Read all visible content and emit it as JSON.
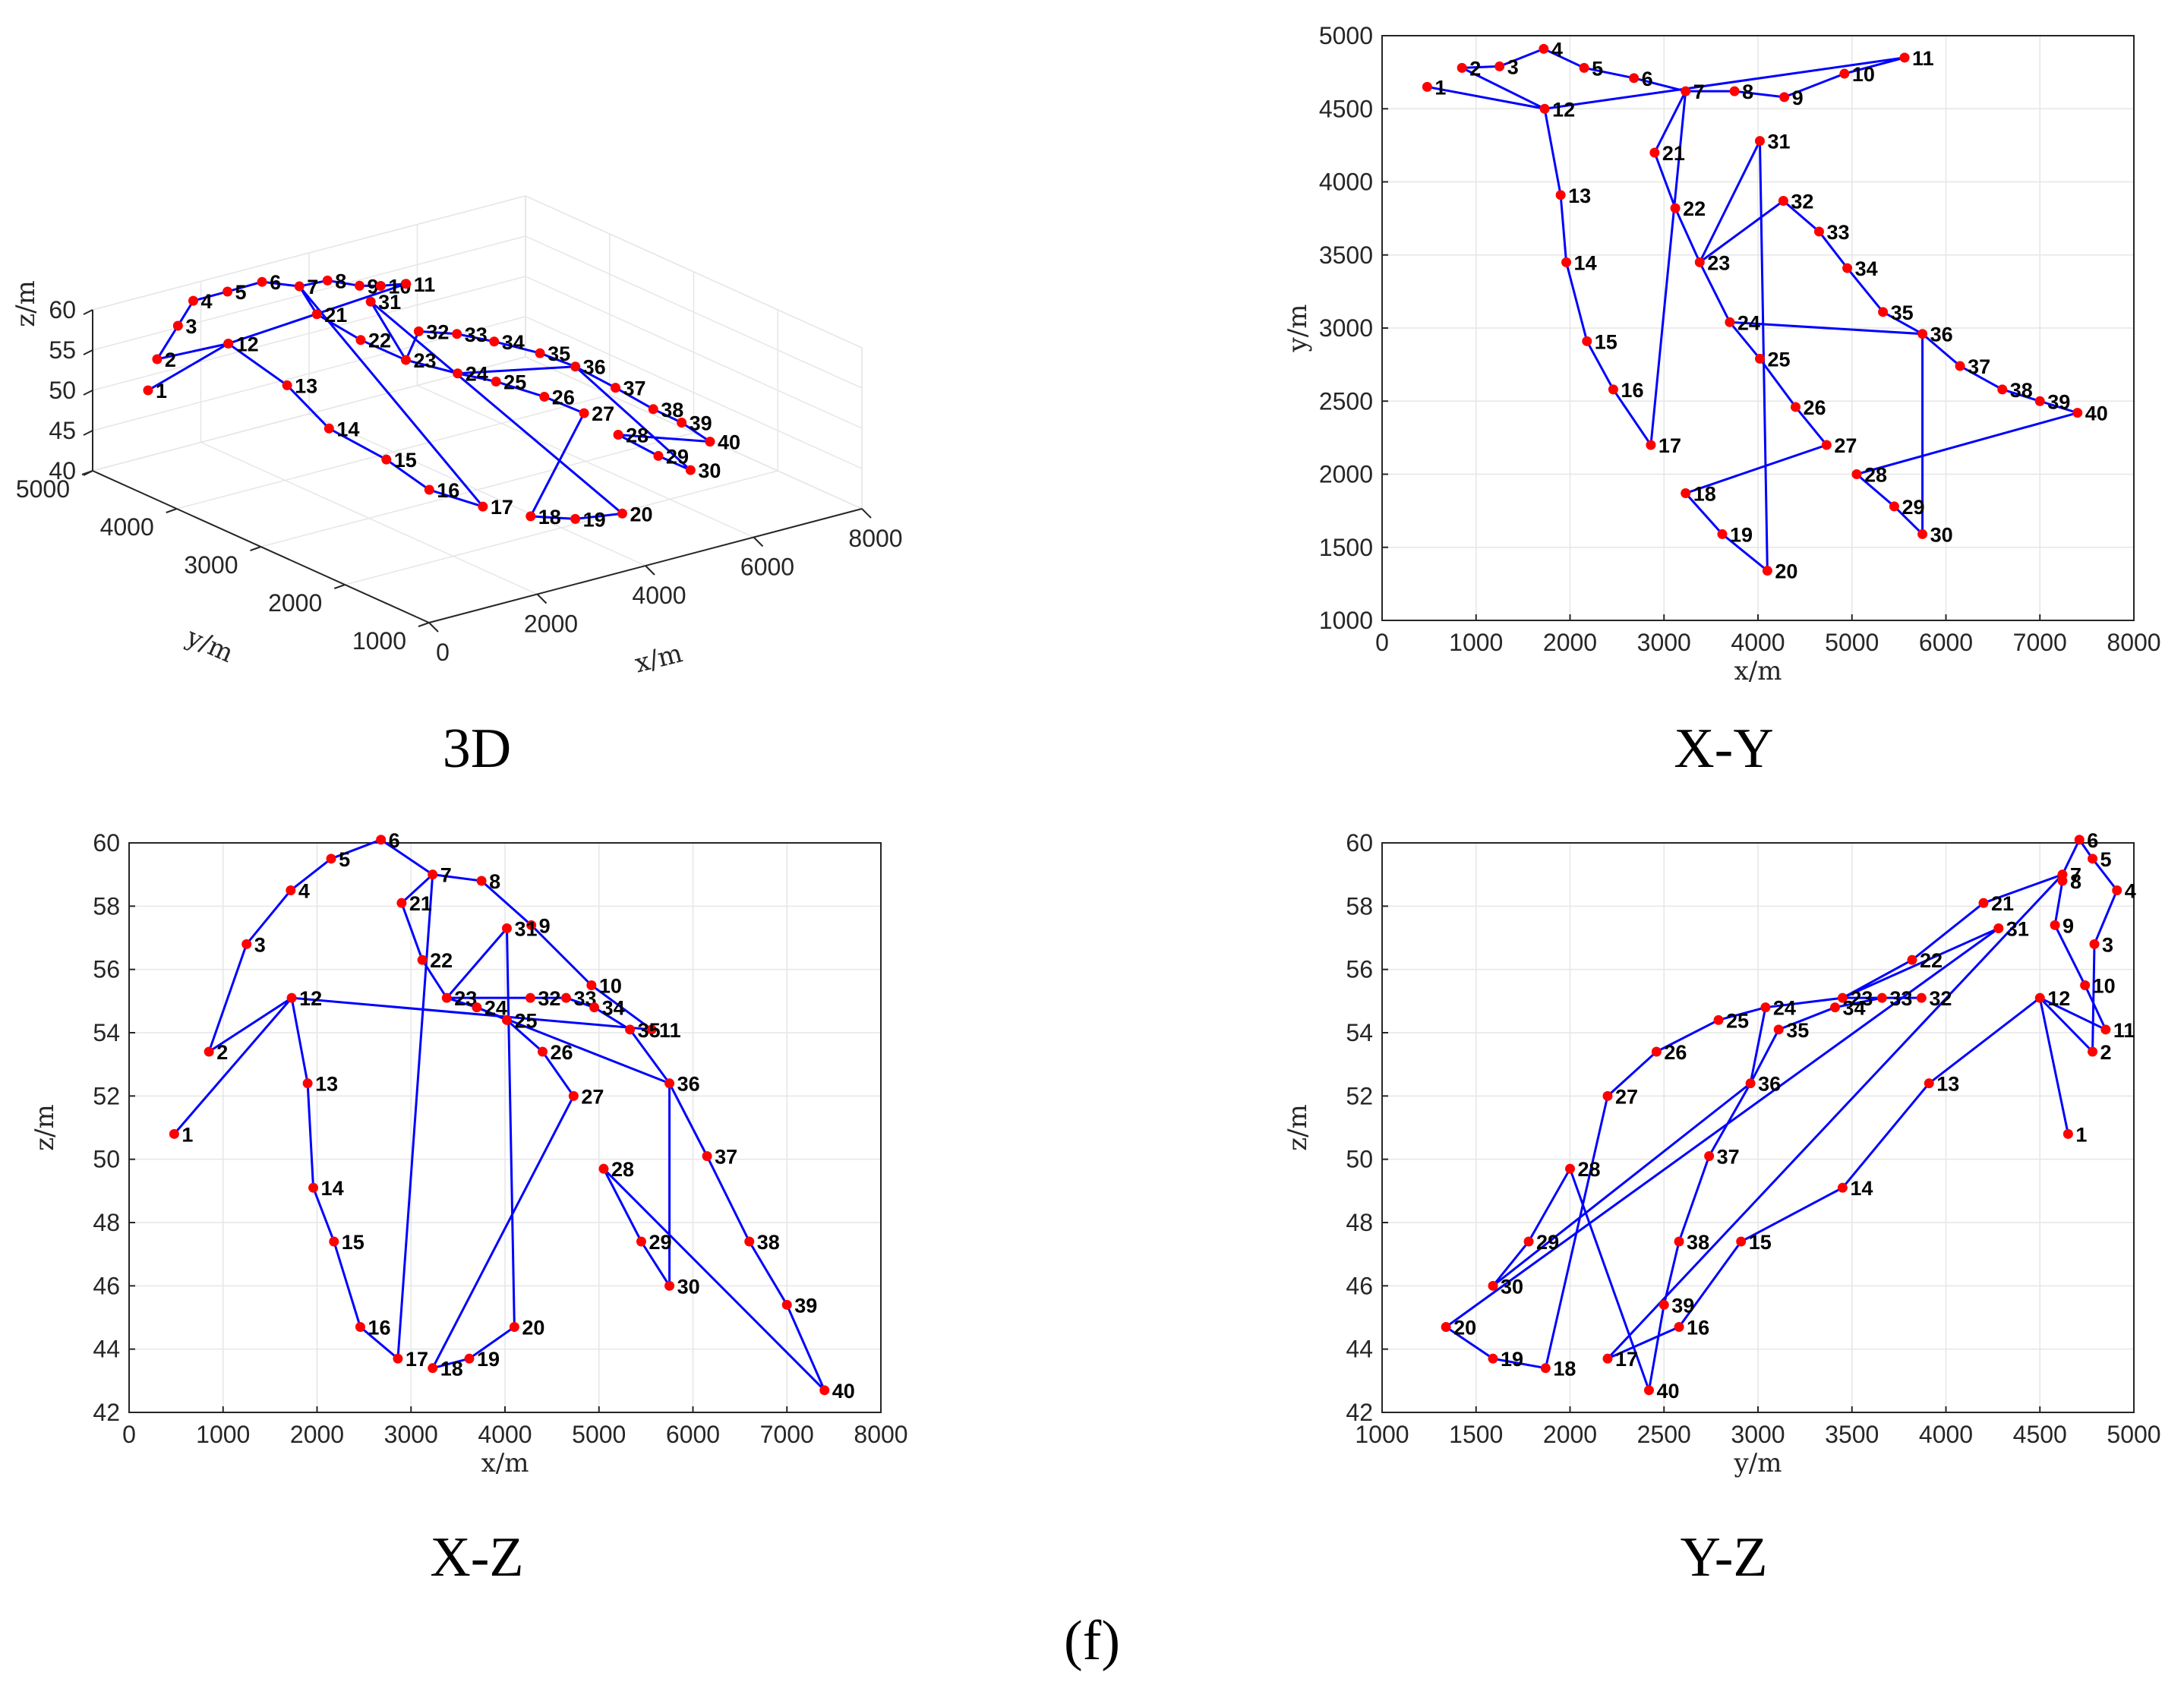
{
  "figure_label": "(f)",
  "point_ids": [
    "1",
    "2",
    "3",
    "4",
    "5",
    "6",
    "7",
    "8",
    "9",
    "10",
    "11",
    "12",
    "13",
    "14",
    "15",
    "16",
    "17",
    "18",
    "19",
    "20",
    "21",
    "22",
    "23",
    "24",
    "25",
    "26",
    "27",
    "28",
    "29",
    "30",
    "31",
    "32",
    "33",
    "34",
    "35",
    "36",
    "37",
    "38",
    "39",
    "40"
  ],
  "path_order": [
    "1",
    "12",
    "2",
    "3",
    "4",
    "5",
    "6",
    "7",
    "8",
    "9",
    "10",
    "11",
    "12",
    "13",
    "14",
    "15",
    "16",
    "17",
    "7",
    "21",
    "22",
    "23",
    "24",
    "25",
    "26",
    "27",
    "18",
    "19",
    "20",
    "31",
    "23",
    "32",
    "33",
    "34",
    "35",
    "36",
    "37",
    "38",
    "39",
    "40",
    "28",
    "29",
    "30",
    "36",
    "24"
  ],
  "chart_data": [
    {
      "id": "3d",
      "type": "scatter",
      "projection": "3d",
      "title": "3D",
      "xlabel": "x/m",
      "ylabel": "y/m",
      "zlabel": "z/m",
      "xlim": [
        0,
        8000
      ],
      "ylim": [
        1000,
        5000
      ],
      "zlim": [
        40,
        60
      ],
      "xticks": [
        "0",
        "2000",
        "4000",
        "6000",
        "8000"
      ],
      "yticks": [
        "1000",
        "2000",
        "3000",
        "4000",
        "5000"
      ],
      "zticks": [
        "40",
        "45",
        "50",
        "55",
        "60"
      ]
    },
    {
      "id": "xy",
      "type": "scatter",
      "title": "X-Y",
      "xlabel": "x/m",
      "ylabel": "y/m",
      "xlim": [
        0,
        8000
      ],
      "ylim": [
        1000,
        5000
      ],
      "xticks": [
        "0",
        "1000",
        "2000",
        "3000",
        "4000",
        "5000",
        "6000",
        "7000",
        "8000"
      ],
      "yticks": [
        "1000",
        "1500",
        "2000",
        "2500",
        "3000",
        "3500",
        "4000",
        "4500",
        "5000"
      ],
      "x": [
        480,
        850,
        1250,
        1720,
        2150,
        2680,
        3230,
        3750,
        4280,
        4920,
        5560,
        1730,
        1900,
        1960,
        2180,
        2460,
        2860,
        3230,
        3620,
        4100,
        2900,
        3120,
        3380,
        3700,
        4020,
        4400,
        4730,
        5050,
        5450,
        5750,
        4020,
        4270,
        4650,
        4950,
        5330,
        5750,
        6150,
        6600,
        7000,
        7400
      ],
      "y": [
        4650,
        4780,
        4790,
        4910,
        4780,
        4710,
        4620,
        4620,
        4580,
        4740,
        4850,
        4500,
        3910,
        3450,
        2910,
        2580,
        2200,
        1870,
        1590,
        1340,
        4200,
        3820,
        3450,
        3040,
        2790,
        2460,
        2200,
        2000,
        1780,
        1590,
        4280,
        3870,
        3660,
        3410,
        3110,
        2960,
        2740,
        2580,
        2500,
        2420
      ]
    },
    {
      "id": "xz",
      "type": "scatter",
      "title": "X-Z",
      "xlabel": "x/m",
      "ylabel": "z/m",
      "xlim": [
        0,
        8000
      ],
      "ylim": [
        42,
        60
      ],
      "xticks": [
        "0",
        "1000",
        "2000",
        "3000",
        "4000",
        "5000",
        "6000",
        "7000",
        "8000"
      ],
      "yticks": [
        "42",
        "44",
        "46",
        "48",
        "50",
        "52",
        "54",
        "56",
        "58",
        "60"
      ],
      "x": [
        480,
        850,
        1250,
        1720,
        2150,
        2680,
        3230,
        3750,
        4280,
        4920,
        5560,
        1730,
        1900,
        1960,
        2180,
        2460,
        2860,
        3230,
        3620,
        4100,
        2900,
        3120,
        3380,
        3700,
        4020,
        4400,
        4730,
        5050,
        5450,
        5750,
        4020,
        4270,
        4650,
        4950,
        5330,
        5750,
        6150,
        6600,
        7000,
        7400
      ],
      "z": [
        50.8,
        53.4,
        56.8,
        58.5,
        59.5,
        60.1,
        59.0,
        58.8,
        57.4,
        55.5,
        54.1,
        55.1,
        52.4,
        49.1,
        47.4,
        44.7,
        43.7,
        43.4,
        43.7,
        44.7,
        58.1,
        56.3,
        55.1,
        54.8,
        54.4,
        53.4,
        52.0,
        49.7,
        47.4,
        46.0,
        57.3,
        55.1,
        55.1,
        54.8,
        54.1,
        52.4,
        50.1,
        47.4,
        45.4,
        42.7
      ]
    },
    {
      "id": "yz",
      "type": "scatter",
      "title": "Y-Z",
      "xlabel": "y/m",
      "ylabel": "z/m",
      "xlim": [
        1000,
        5000
      ],
      "ylim": [
        42,
        60
      ],
      "xticks": [
        "1000",
        "1500",
        "2000",
        "2500",
        "3000",
        "3500",
        "4000",
        "4500",
        "5000"
      ],
      "yticks": [
        "42",
        "44",
        "46",
        "48",
        "50",
        "52",
        "54",
        "56",
        "58",
        "60"
      ],
      "y": [
        4650,
        4780,
        4790,
        4910,
        4780,
        4710,
        4620,
        4620,
        4580,
        4740,
        4850,
        4500,
        3910,
        3450,
        2910,
        2580,
        2200,
        1870,
        1590,
        1340,
        4200,
        3820,
        3450,
        3040,
        2790,
        2460,
        2200,
        2000,
        1780,
        1590,
        4280,
        3870,
        3660,
        3410,
        3110,
        2960,
        2740,
        2580,
        2500,
        2420
      ],
      "z": [
        50.8,
        53.4,
        56.8,
        58.5,
        59.5,
        60.1,
        59.0,
        58.8,
        57.4,
        55.5,
        54.1,
        55.1,
        52.4,
        49.1,
        47.4,
        44.7,
        43.7,
        43.4,
        43.7,
        44.7,
        58.1,
        56.3,
        55.1,
        54.8,
        54.4,
        53.4,
        52.0,
        49.7,
        47.4,
        46.0,
        57.3,
        55.1,
        55.1,
        54.8,
        54.1,
        52.4,
        50.1,
        47.4,
        45.4,
        42.7
      ]
    }
  ],
  "colors": {
    "line": "#0000ff",
    "marker": "#ff0000",
    "grid": "#e6e6e6",
    "axis": "#262626"
  }
}
